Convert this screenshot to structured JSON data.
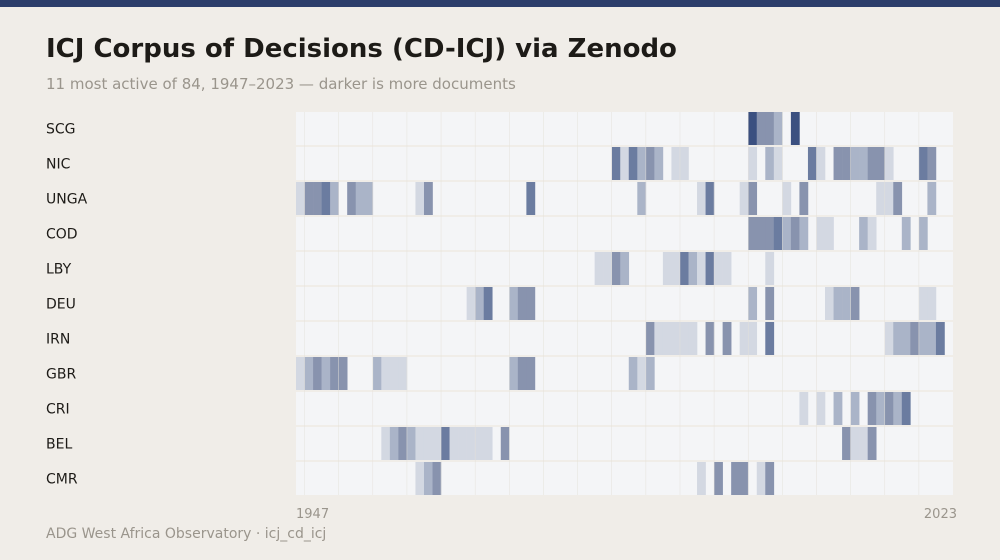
{
  "header": {
    "title": "ICJ Corpus of Decisions (CD-ICJ) via Zenodo",
    "subtitle": "11 most active of 84, 1947–2023 — darker is more documents"
  },
  "footer": {
    "credit": "ADG West Africa Observatory · icj_cd_icj"
  },
  "colors": {
    "background": "#f0ede8",
    "topbar": "#2c3e6b",
    "empty_cell": "#f4f5f7",
    "scale_dark": "#3b5080"
  },
  "chart_data": {
    "type": "heatmap",
    "title": "ICJ Corpus of Decisions (CD-ICJ) via Zenodo",
    "subtitle": "11 most active of 84, 1947–2023 — darker is more documents",
    "x_tick_labels": [
      "1947",
      "2023"
    ],
    "x_range": [
      1947,
      2023
    ],
    "value_scale": "darker is more documents (relative intensity 1–5)",
    "rows": [
      {
        "name": "SCG",
        "cells": [
          [
            2000,
            5
          ],
          [
            2001,
            3
          ],
          [
            2002,
            3
          ],
          [
            2003,
            2
          ],
          [
            2005,
            5
          ]
        ]
      },
      {
        "name": "NIC",
        "cells": [
          [
            1984,
            4
          ],
          [
            1985,
            1
          ],
          [
            1986,
            4
          ],
          [
            1987,
            2
          ],
          [
            1988,
            3
          ],
          [
            1989,
            2
          ],
          [
            1991,
            1
          ],
          [
            1992,
            1
          ],
          [
            2000,
            1
          ],
          [
            2002,
            2
          ],
          [
            2003,
            1
          ],
          [
            2007,
            4
          ],
          [
            2008,
            1
          ],
          [
            2010,
            3
          ],
          [
            2011,
            3
          ],
          [
            2012,
            2
          ],
          [
            2013,
            2
          ],
          [
            2014,
            3
          ],
          [
            2015,
            3
          ],
          [
            2016,
            1
          ],
          [
            2020,
            4
          ],
          [
            2021,
            3
          ]
        ]
      },
      {
        "name": "UNGA",
        "cells": [
          [
            1947,
            1
          ],
          [
            1948,
            3
          ],
          [
            1949,
            3
          ],
          [
            1950,
            4
          ],
          [
            1951,
            2
          ],
          [
            1953,
            3
          ],
          [
            1954,
            2
          ],
          [
            1955,
            2
          ],
          [
            1961,
            1
          ],
          [
            1962,
            3
          ],
          [
            1974,
            4
          ],
          [
            1987,
            2
          ],
          [
            1994,
            1
          ],
          [
            1995,
            4
          ],
          [
            1999,
            1
          ],
          [
            2000,
            3
          ],
          [
            2004,
            1
          ],
          [
            2006,
            3
          ],
          [
            2015,
            1
          ],
          [
            2016,
            1
          ],
          [
            2017,
            3
          ],
          [
            2021,
            2
          ]
        ]
      },
      {
        "name": "COD",
        "cells": [
          [
            2000,
            3
          ],
          [
            2001,
            3
          ],
          [
            2002,
            3
          ],
          [
            2003,
            4
          ],
          [
            2004,
            2
          ],
          [
            2005,
            3
          ],
          [
            2006,
            2
          ],
          [
            2008,
            1
          ],
          [
            2009,
            1
          ],
          [
            2013,
            2
          ],
          [
            2014,
            1
          ],
          [
            2018,
            2
          ],
          [
            2020,
            2
          ]
        ]
      },
      {
        "name": "LBY",
        "cells": [
          [
            1982,
            1
          ],
          [
            1983,
            1
          ],
          [
            1984,
            3
          ],
          [
            1985,
            2
          ],
          [
            1990,
            1
          ],
          [
            1991,
            1
          ],
          [
            1992,
            4
          ],
          [
            1993,
            2
          ],
          [
            1994,
            1
          ],
          [
            1995,
            4
          ],
          [
            1996,
            1
          ],
          [
            1997,
            1
          ],
          [
            2002,
            1
          ]
        ]
      },
      {
        "name": "DEU",
        "cells": [
          [
            1967,
            1
          ],
          [
            1968,
            2
          ],
          [
            1969,
            4
          ],
          [
            1972,
            2
          ],
          [
            1973,
            3
          ],
          [
            1974,
            3
          ],
          [
            2000,
            2
          ],
          [
            2002,
            3
          ],
          [
            2009,
            1
          ],
          [
            2010,
            2
          ],
          [
            2011,
            2
          ],
          [
            2012,
            3
          ],
          [
            2020,
            1
          ],
          [
            2021,
            1
          ]
        ]
      },
      {
        "name": "IRN",
        "cells": [
          [
            1988,
            3
          ],
          [
            1989,
            1
          ],
          [
            1990,
            1
          ],
          [
            1991,
            1
          ],
          [
            1992,
            1
          ],
          [
            1993,
            1
          ],
          [
            1995,
            3
          ],
          [
            1997,
            3
          ],
          [
            1999,
            1
          ],
          [
            2000,
            1
          ],
          [
            2002,
            4
          ],
          [
            2016,
            1
          ],
          [
            2017,
            2
          ],
          [
            2018,
            2
          ],
          [
            2019,
            3
          ],
          [
            2020,
            2
          ],
          [
            2021,
            2
          ],
          [
            2022,
            4
          ]
        ]
      },
      {
        "name": "GBR",
        "cells": [
          [
            1947,
            1
          ],
          [
            1948,
            2
          ],
          [
            1949,
            3
          ],
          [
            1950,
            2
          ],
          [
            1951,
            3
          ],
          [
            1952,
            3
          ],
          [
            1956,
            2
          ],
          [
            1957,
            1
          ],
          [
            1958,
            1
          ],
          [
            1959,
            1
          ],
          [
            1972,
            2
          ],
          [
            1973,
            3
          ],
          [
            1974,
            3
          ],
          [
            1986,
            2
          ],
          [
            1987,
            1
          ],
          [
            1988,
            2
          ]
        ]
      },
      {
        "name": "CRI",
        "cells": [
          [
            2006,
            1
          ],
          [
            2008,
            1
          ],
          [
            2010,
            2
          ],
          [
            2012,
            2
          ],
          [
            2014,
            3
          ],
          [
            2015,
            2
          ],
          [
            2016,
            3
          ],
          [
            2017,
            2
          ],
          [
            2018,
            4
          ]
        ]
      },
      {
        "name": "BEL",
        "cells": [
          [
            1957,
            1
          ],
          [
            1958,
            2
          ],
          [
            1959,
            3
          ],
          [
            1960,
            2
          ],
          [
            1961,
            1
          ],
          [
            1962,
            1
          ],
          [
            1963,
            1
          ],
          [
            1964,
            4
          ],
          [
            1965,
            1
          ],
          [
            1966,
            1
          ],
          [
            1967,
            1
          ],
          [
            1968,
            1
          ],
          [
            1969,
            1
          ],
          [
            1971,
            3
          ],
          [
            2011,
            3
          ],
          [
            2012,
            1
          ],
          [
            2013,
            1
          ],
          [
            2014,
            3
          ]
        ]
      },
      {
        "name": "CMR",
        "cells": [
          [
            1961,
            1
          ],
          [
            1962,
            2
          ],
          [
            1963,
            3
          ],
          [
            1994,
            1
          ],
          [
            1996,
            3
          ],
          [
            1998,
            3
          ],
          [
            1999,
            3
          ],
          [
            2001,
            1
          ],
          [
            2002,
            3
          ]
        ]
      }
    ]
  }
}
